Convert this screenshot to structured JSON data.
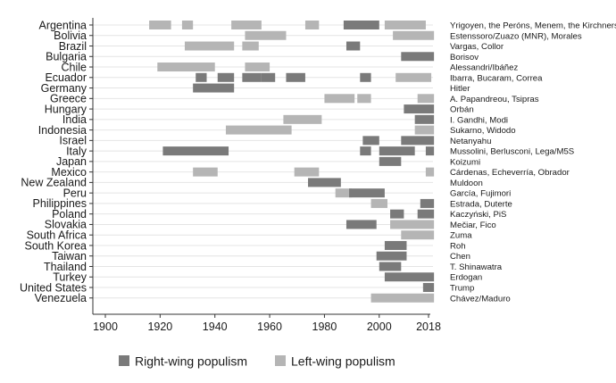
{
  "chart_data": {
    "type": "bar",
    "subtype": "timeline-gantt",
    "title": "",
    "xlabel": "",
    "ylabel": "",
    "xlim": [
      1896,
      2022
    ],
    "x_ticks": [
      1900,
      1920,
      1940,
      1960,
      1980,
      2000,
      2018
    ],
    "grid": true,
    "legend_position": "bottom",
    "colors": {
      "right": "#7a7a7a",
      "left": "#b5b5b5",
      "grid": "#e4e4e4",
      "axis": "#333333"
    },
    "legend": [
      {
        "key": "right",
        "label": "Right-wing populism"
      },
      {
        "key": "left",
        "label": "Left-wing populism"
      }
    ],
    "rows": [
      {
        "country": "Argentina",
        "leaders": "Yrigoyen, the Peróns, Menem, the Kirchners",
        "spells": [
          [
            1916,
            1924,
            "left"
          ],
          [
            1928,
            1932,
            "left"
          ],
          [
            1946,
            1957,
            "left"
          ],
          [
            1973,
            1978,
            "left"
          ],
          [
            1987,
            2000,
            "right"
          ],
          [
            2002,
            2017,
            "left"
          ]
        ]
      },
      {
        "country": "Bolivia",
        "leaders": "Estenssoro/Zuazo (MNR), Morales",
        "spells": [
          [
            1951,
            1966,
            "left"
          ],
          [
            2005,
            2020,
            "left"
          ]
        ]
      },
      {
        "country": "Brazil",
        "leaders": "Vargas, Collor",
        "spells": [
          [
            1929,
            1947,
            "left"
          ],
          [
            1950,
            1956,
            "left"
          ],
          [
            1988,
            1993,
            "right"
          ]
        ]
      },
      {
        "country": "Bulgaria",
        "leaders": "Borisov",
        "spells": [
          [
            2008,
            2020,
            "right"
          ]
        ]
      },
      {
        "country": "Chile",
        "leaders": "Alessandri/Ibáñez",
        "spells": [
          [
            1919,
            1940,
            "left"
          ],
          [
            1951,
            1960,
            "left"
          ]
        ]
      },
      {
        "country": "Ecuador",
        "leaders": "Ibarra, Bucaram, Correa",
        "spells": [
          [
            1933,
            1937,
            "right"
          ],
          [
            1941,
            1947,
            "right"
          ],
          [
            1950,
            1957,
            "right"
          ],
          [
            1957,
            1962,
            "right"
          ],
          [
            1966,
            1973,
            "right"
          ],
          [
            1993,
            1997,
            "right"
          ],
          [
            2006,
            2019,
            "left"
          ]
        ]
      },
      {
        "country": "Germany",
        "leaders": "Hitler",
        "spells": [
          [
            1932,
            1947,
            "right"
          ]
        ]
      },
      {
        "country": "Greece",
        "leaders": "A. Papandreou, Tsipras",
        "spells": [
          [
            1980,
            1991,
            "left"
          ],
          [
            1992,
            1997,
            "left"
          ],
          [
            2014,
            2020,
            "left"
          ]
        ]
      },
      {
        "country": "Hungary",
        "leaders": "Orbán",
        "spells": [
          [
            2009,
            2020,
            "right"
          ]
        ]
      },
      {
        "country": "India",
        "leaders": "I. Gandhi, Modi",
        "spells": [
          [
            1965,
            1979,
            "left"
          ],
          [
            2013,
            2020,
            "right"
          ]
        ]
      },
      {
        "country": "Indonesia",
        "leaders": "Sukarno, Widodo",
        "spells": [
          [
            1944,
            1968,
            "left"
          ],
          [
            2013,
            2020,
            "left"
          ]
        ]
      },
      {
        "country": "Israel",
        "leaders": "Netanyahu",
        "spells": [
          [
            1994,
            2000,
            "right"
          ],
          [
            2008,
            2020,
            "right"
          ]
        ]
      },
      {
        "country": "Italy",
        "leaders": "Mussolini, Berlusconi, Lega/M5S",
        "spells": [
          [
            1921,
            1945,
            "right"
          ],
          [
            1993,
            1997,
            "right"
          ],
          [
            2000,
            2013,
            "right"
          ],
          [
            2017,
            2020,
            "right"
          ]
        ]
      },
      {
        "country": "Japan",
        "leaders": "Koizumi",
        "spells": [
          [
            2000,
            2008,
            "right"
          ]
        ]
      },
      {
        "country": "Mexico",
        "leaders": "Cárdenas, Echeverría, Obrador",
        "spells": [
          [
            1932,
            1941,
            "left"
          ],
          [
            1969,
            1978,
            "left"
          ],
          [
            2017,
            2020,
            "left"
          ]
        ]
      },
      {
        "country": "New Zealand",
        "leaders": "Muldoon",
        "spells": [
          [
            1974,
            1986,
            "right"
          ]
        ]
      },
      {
        "country": "Peru",
        "leaders": "García, Fujimori",
        "spells": [
          [
            1984,
            1990,
            "left"
          ],
          [
            1989,
            2002,
            "right"
          ]
        ]
      },
      {
        "country": "Philippines",
        "leaders": "Estrada, Duterte",
        "spells": [
          [
            1997,
            2003,
            "left"
          ],
          [
            2015,
            2020,
            "right"
          ]
        ]
      },
      {
        "country": "Poland",
        "leaders": "Kaczyński, PiS",
        "spells": [
          [
            2004,
            2009,
            "right"
          ],
          [
            2014,
            2020,
            "right"
          ]
        ]
      },
      {
        "country": "Slovakia",
        "leaders": "Mečiar, Fico",
        "spells": [
          [
            1988,
            1999,
            "right"
          ],
          [
            2004,
            2020,
            "left"
          ]
        ]
      },
      {
        "country": "South Africa",
        "leaders": "Zuma",
        "spells": [
          [
            2008,
            2020,
            "left"
          ]
        ]
      },
      {
        "country": "South Korea",
        "leaders": "Roh",
        "spells": [
          [
            2002,
            2010,
            "right"
          ]
        ]
      },
      {
        "country": "Taiwan",
        "leaders": "Chen",
        "spells": [
          [
            1999,
            2010,
            "right"
          ]
        ]
      },
      {
        "country": "Thailand",
        "leaders": "T. Shinawatra",
        "spells": [
          [
            2000,
            2008,
            "right"
          ]
        ]
      },
      {
        "country": "Turkey",
        "leaders": "Erdogan",
        "spells": [
          [
            2002,
            2020,
            "right"
          ]
        ]
      },
      {
        "country": "United States",
        "leaders": "Trump",
        "spells": [
          [
            2016,
            2020,
            "right"
          ]
        ]
      },
      {
        "country": "Venezuela",
        "leaders": "Chávez/Maduro",
        "spells": [
          [
            1997,
            2020,
            "left"
          ]
        ]
      }
    ]
  }
}
